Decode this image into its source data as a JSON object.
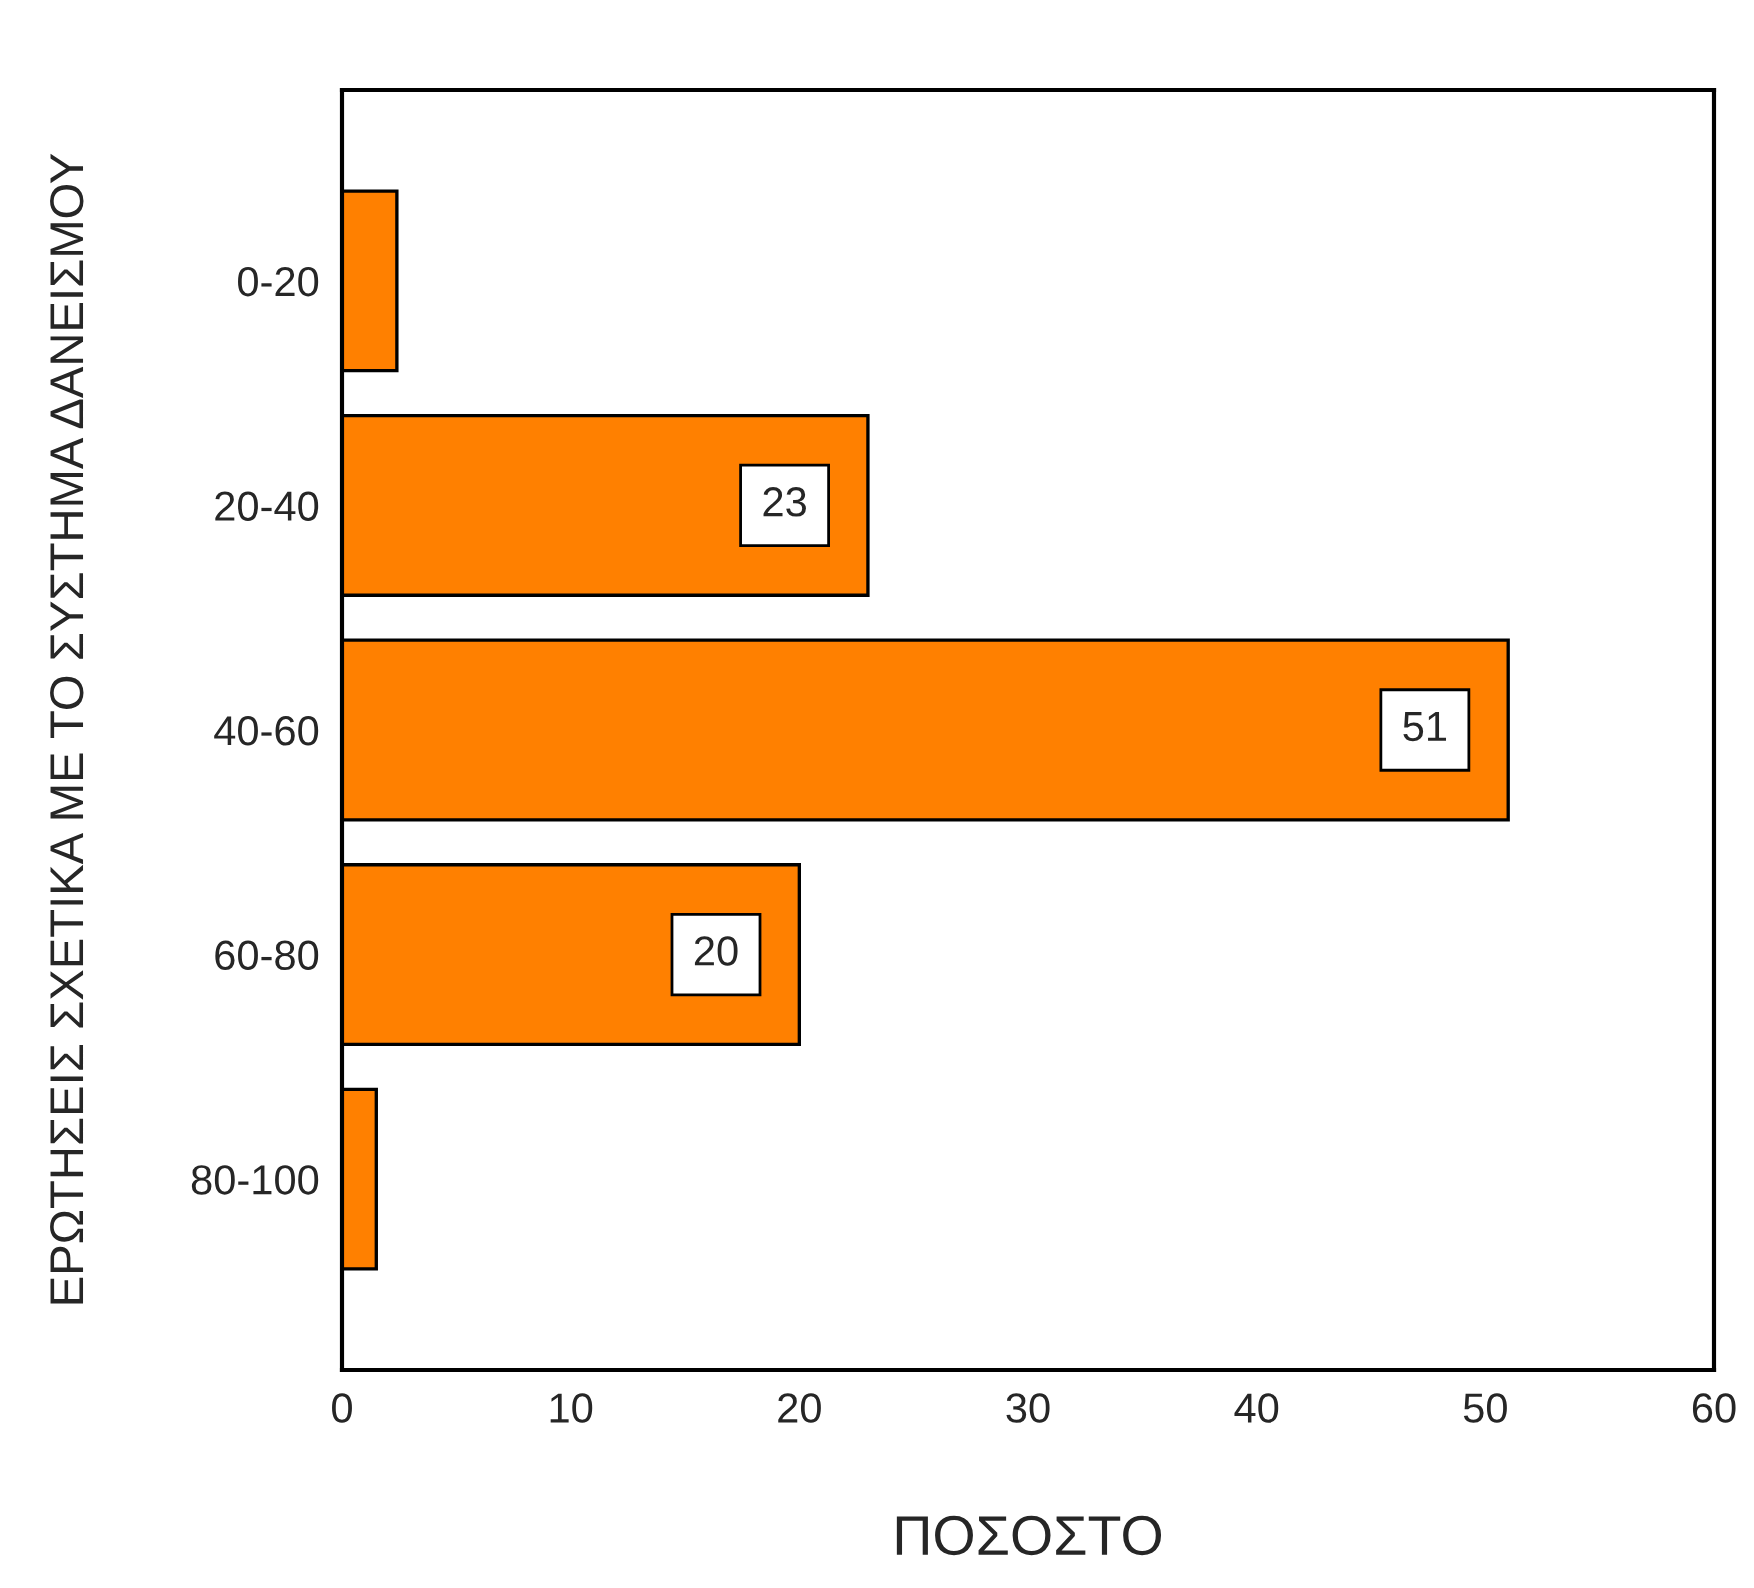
{
  "chart_data": {
    "type": "bar",
    "orientation": "horizontal",
    "categories": [
      "0-20",
      "20-40",
      "40-60",
      "60-80",
      "80-100"
    ],
    "values": [
      2.4,
      23,
      51,
      20,
      1.5
    ],
    "value_labels": [
      null,
      "23",
      "51",
      "20",
      null
    ],
    "color": "#ff8000",
    "xlim": [
      0,
      60
    ],
    "xticks": [
      0,
      10,
      20,
      30,
      40,
      50,
      60
    ],
    "xlabel": "ΠΟΣΟΣΤΟ",
    "ylabel": "ΕΡΩΤΗΣΕΙΣ ΣΧΕΤΙΚΑ ΜΕ ΤΟ ΣΥΣΤΗΜΑ ΔΑΝΕΙΣΜΟΥ",
    "grid": false,
    "legend": false
  }
}
